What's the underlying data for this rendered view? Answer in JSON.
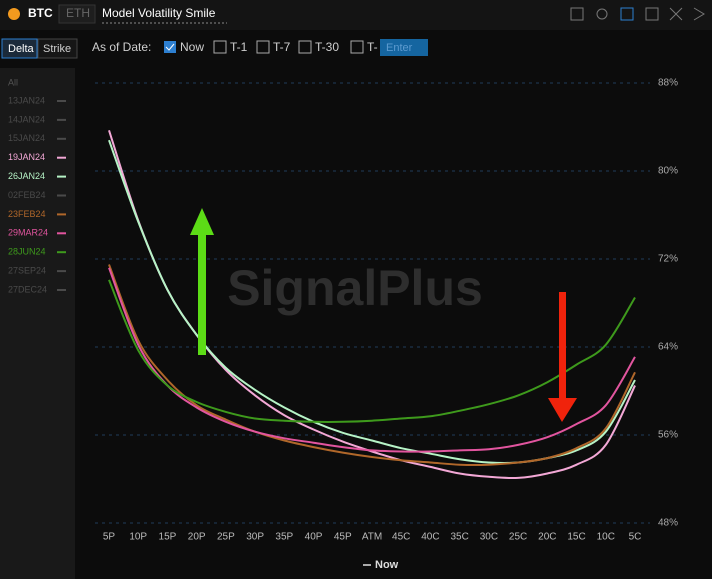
{
  "header": {
    "coin": "BTC",
    "alt_coin": "ETH",
    "title": "Model Volatility Smile"
  },
  "controls": {
    "delta": "Delta",
    "strike": "Strike",
    "as_of": "As of Date:",
    "options": [
      "Now",
      "T-1",
      "T-7",
      "T-30",
      "T-"
    ],
    "input_placeholder": "Enter"
  },
  "chart_data": {
    "type": "line",
    "watermark": "SignalPlus",
    "legend_all": "All",
    "date_legend": "Now",
    "categories": [
      "5P",
      "10P",
      "15P",
      "20P",
      "25P",
      "30P",
      "35P",
      "40P",
      "45P",
      "ATM",
      "45C",
      "40C",
      "35C",
      "30C",
      "25C",
      "20C",
      "15C",
      "10C",
      "5C"
    ],
    "ylim": [
      48,
      88
    ],
    "yticks": [
      {
        "value": 48,
        "label": "48%"
      },
      {
        "value": 56,
        "label": "56%"
      },
      {
        "value": 64,
        "label": "64%"
      },
      {
        "value": 72,
        "label": "72%"
      },
      {
        "value": 80,
        "label": "80%"
      },
      {
        "value": 88,
        "label": "88%"
      }
    ],
    "grid": true,
    "series": [
      {
        "name": "13JAN24",
        "color": "#4a4a4a",
        "visible": false
      },
      {
        "name": "14JAN24",
        "color": "#4a4a4a",
        "visible": false
      },
      {
        "name": "15JAN24",
        "color": "#4a4a4a",
        "visible": false
      },
      {
        "name": "19JAN24",
        "color": "#f3a8d6",
        "visible": true,
        "values": [
          83.7,
          75.5,
          69.2,
          65.1,
          61.9,
          59.6,
          57.8,
          56.5,
          55.4,
          54.5,
          53.7,
          53.1,
          52.5,
          52.2,
          52.1,
          52.5,
          53.3,
          55.1,
          60.5
        ]
      },
      {
        "name": "26JAN24",
        "color": "#b6f3c6",
        "visible": true,
        "values": [
          82.8,
          75.4,
          69.2,
          65.1,
          62.1,
          60.1,
          58.5,
          57.2,
          56.2,
          55.5,
          54.8,
          54.3,
          53.8,
          53.5,
          53.5,
          53.9,
          54.6,
          56.3,
          61
        ]
      },
      {
        "name": "02FEB24",
        "color": "#4a4a4a",
        "visible": false
      },
      {
        "name": "23FEB24",
        "color": "#b0672a",
        "visible": true,
        "values": [
          71.5,
          64.6,
          61,
          58.7,
          57.4,
          56.3,
          55.5,
          54.9,
          54.4,
          54,
          53.7,
          53.5,
          53.3,
          53.3,
          53.5,
          53.9,
          54.8,
          56.6,
          61.7
        ]
      },
      {
        "name": "29MAR24",
        "color": "#e2559f",
        "visible": true,
        "values": [
          71.2,
          64.2,
          60.5,
          58.5,
          57.2,
          56.3,
          55.7,
          55.3,
          54.9,
          54.6,
          54.5,
          54.5,
          54.6,
          54.7,
          55.1,
          55.8,
          57,
          58.7,
          63.1
        ]
      },
      {
        "name": "28JUN24",
        "color": "#3e9a1c",
        "visible": true,
        "values": [
          70.1,
          63.7,
          60.5,
          59,
          58.1,
          57.5,
          57.3,
          57.2,
          57.2,
          57.3,
          57.5,
          57.7,
          58.2,
          58.8,
          59.6,
          60.8,
          62.4,
          64.2,
          68.5
        ]
      },
      {
        "name": "27SEP24",
        "color": "#4a4a4a",
        "visible": false
      },
      {
        "name": "27DEC24",
        "color": "#4a4a4a",
        "visible": false
      }
    ]
  }
}
